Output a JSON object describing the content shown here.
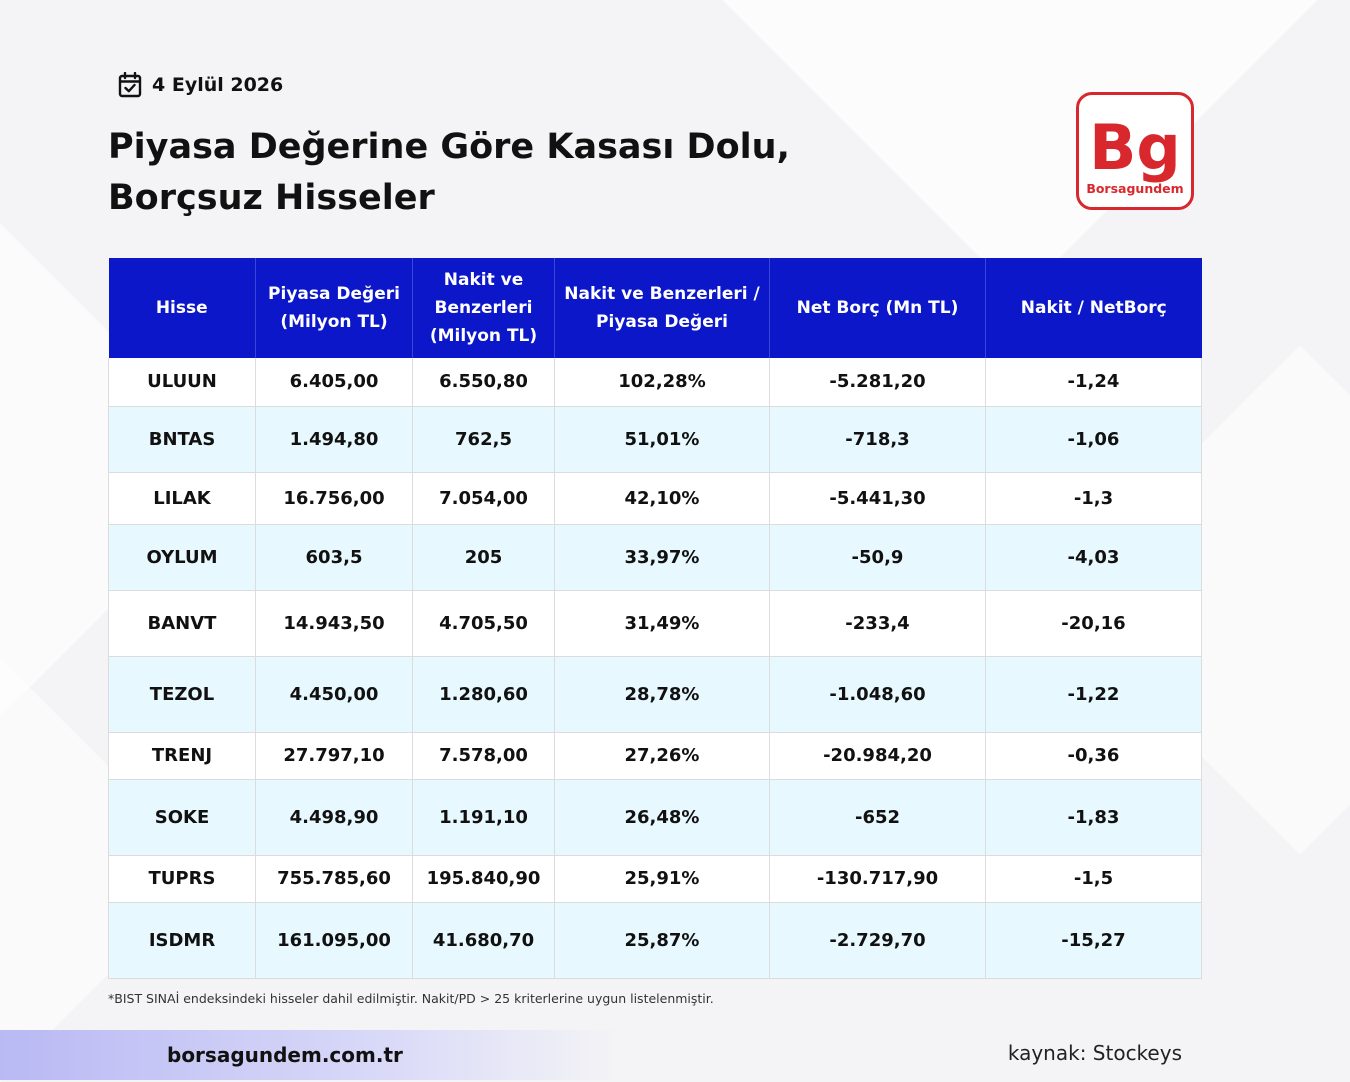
{
  "header": {
    "date": "4 Eylül 2026",
    "title_line1": "Piyasa Değerine Göre Kasası Dolu,",
    "title_line2": "Borçsuz Hisseler"
  },
  "logo": {
    "mark": "Bg",
    "text": "Borsagundem",
    "color": "#d9272e"
  },
  "table": {
    "header_color": "#0c17c9",
    "stripe_color": "#e7f8fe",
    "columns": [
      "Hisse",
      "Piyasa Değeri (Milyon TL)",
      "Nakit ve Benzerleri (Milyon TL)",
      "Nakit ve Benzerleri / Piyasa Değeri",
      "Net Borç (Mn TL)",
      "Nakit / NetBorç"
    ],
    "rows": [
      [
        "ULUUN",
        "6.405,00",
        "6.550,80",
        "102,28%",
        "-5.281,20",
        "-1,24"
      ],
      [
        "BNTAS",
        "1.494,80",
        "762,5",
        "51,01%",
        "-718,3",
        "-1,06"
      ],
      [
        "LILAK",
        "16.756,00",
        "7.054,00",
        "42,10%",
        "-5.441,30",
        "-1,3"
      ],
      [
        "OYLUM",
        "603,5",
        "205",
        "33,97%",
        "-50,9",
        "-4,03"
      ],
      [
        "BANVT",
        "14.943,50",
        "4.705,50",
        "31,49%",
        "-233,4",
        "-20,16"
      ],
      [
        "TEZOL",
        "4.450,00",
        "1.280,60",
        "28,78%",
        "-1.048,60",
        "-1,22"
      ],
      [
        "TRENJ",
        "27.797,10",
        "7.578,00",
        "27,26%",
        "-20.984,20",
        "-0,36"
      ],
      [
        "SOKE",
        "4.498,90",
        "1.191,10",
        "26,48%",
        "-652",
        "-1,83"
      ],
      [
        "TUPRS",
        "755.785,60",
        "195.840,90",
        "25,91%",
        "-130.717,90",
        "-1,5"
      ],
      [
        "ISDMR",
        "161.095,00",
        "41.680,70",
        "25,87%",
        "-2.729,70",
        "-15,27"
      ]
    ]
  },
  "footer": {
    "note": "*BIST SINAİ endeksindeki hisseler dahil edilmiştir. Nakit/PD > 25 kriterlerine uygun listelenmiştir.",
    "website": "borsagundem.com.tr",
    "source": "kaynak: Stockeys"
  },
  "icons": {
    "date": "calendar-check-icon"
  }
}
